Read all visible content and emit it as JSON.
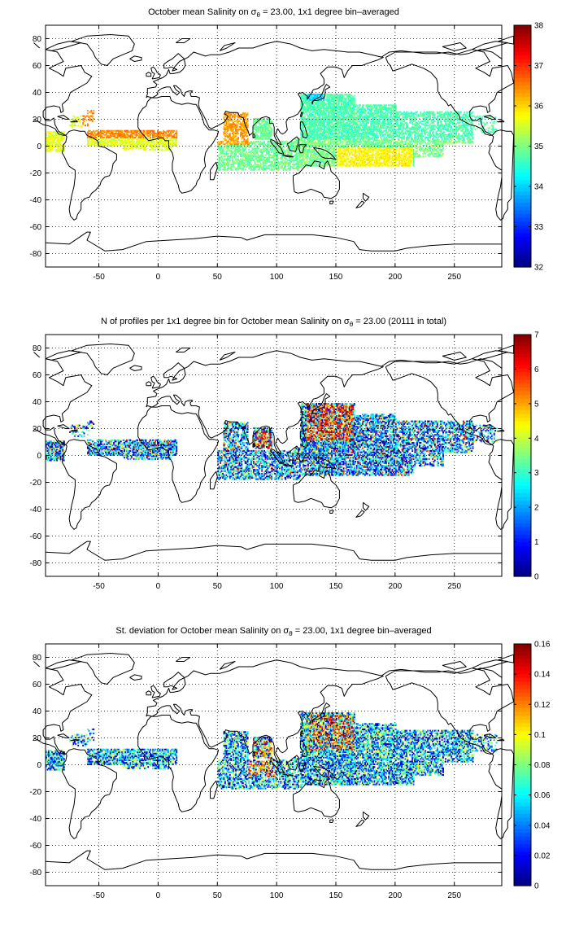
{
  "panels": [
    {
      "title_main": "October mean Salinity on σ",
      "title_sub": "θ",
      "title_rest": " = 23.00, 1x1 degree bin–averaged",
      "colorbar": {
        "min": 32,
        "max": 38,
        "ticks": [
          "38",
          "37",
          "36",
          "35",
          "34",
          "33",
          "32"
        ]
      },
      "field": "salinity"
    },
    {
      "title_main": "N of profiles per 1x1 degree bin for October mean Salinity on σ",
      "title_sub": "θ",
      "title_rest": " = 23.00 (20111 in total)",
      "colorbar": {
        "min": 0,
        "max": 7,
        "ticks": [
          "7",
          "6",
          "5",
          "4",
          "3",
          "2",
          "1",
          "0"
        ]
      },
      "field": "count"
    },
    {
      "title_main": "St. deviation for October mean Salinity on σ",
      "title_sub": "θ",
      "title_rest": " = 23.00, 1x1 degree bin–averaged",
      "colorbar": {
        "min": 0,
        "max": 0.16,
        "ticks": [
          "0.16",
          "0.14",
          "0.12",
          "0.1",
          "0.08",
          "0.06",
          "0.04",
          "0.02",
          "0"
        ]
      },
      "field": "std"
    }
  ],
  "map": {
    "x_ticks": [
      "-50",
      "0",
      "50",
      "100",
      "150",
      "200",
      "250"
    ],
    "x_tick_values": [
      -50,
      0,
      50,
      100,
      150,
      200,
      250
    ],
    "y_ticks": [
      "80",
      "60",
      "40",
      "20",
      "0",
      "-20",
      "-40",
      "-60",
      "-80"
    ],
    "y_tick_values": [
      80,
      60,
      40,
      20,
      0,
      -20,
      -40,
      -60,
      -80
    ],
    "xlim": [
      -95,
      290
    ],
    "ylim": [
      -90,
      90
    ],
    "grid": "dotted"
  },
  "chart_data": [
    {
      "type": "heatmap",
      "title": "October mean Salinity on σθ = 23.00, 1x1 degree bin–averaged",
      "xlim": [
        -95,
        290
      ],
      "ylim": [
        -90,
        90
      ],
      "clim": [
        32,
        38
      ]
    },
    {
      "type": "heatmap",
      "title": "N of profiles per 1x1 degree bin for October mean Salinity on σθ = 23.00 (20111 in total)",
      "xlim": [
        -95,
        290
      ],
      "ylim": [
        -90,
        90
      ],
      "clim": [
        0,
        7
      ]
    },
    {
      "type": "heatmap",
      "title": "St. deviation for October mean Salinity on σθ = 23.00, 1x1 degree bin–averaged",
      "xlim": [
        -95,
        290
      ],
      "ylim": [
        -90,
        90
      ],
      "clim": [
        0,
        0.16
      ]
    }
  ]
}
